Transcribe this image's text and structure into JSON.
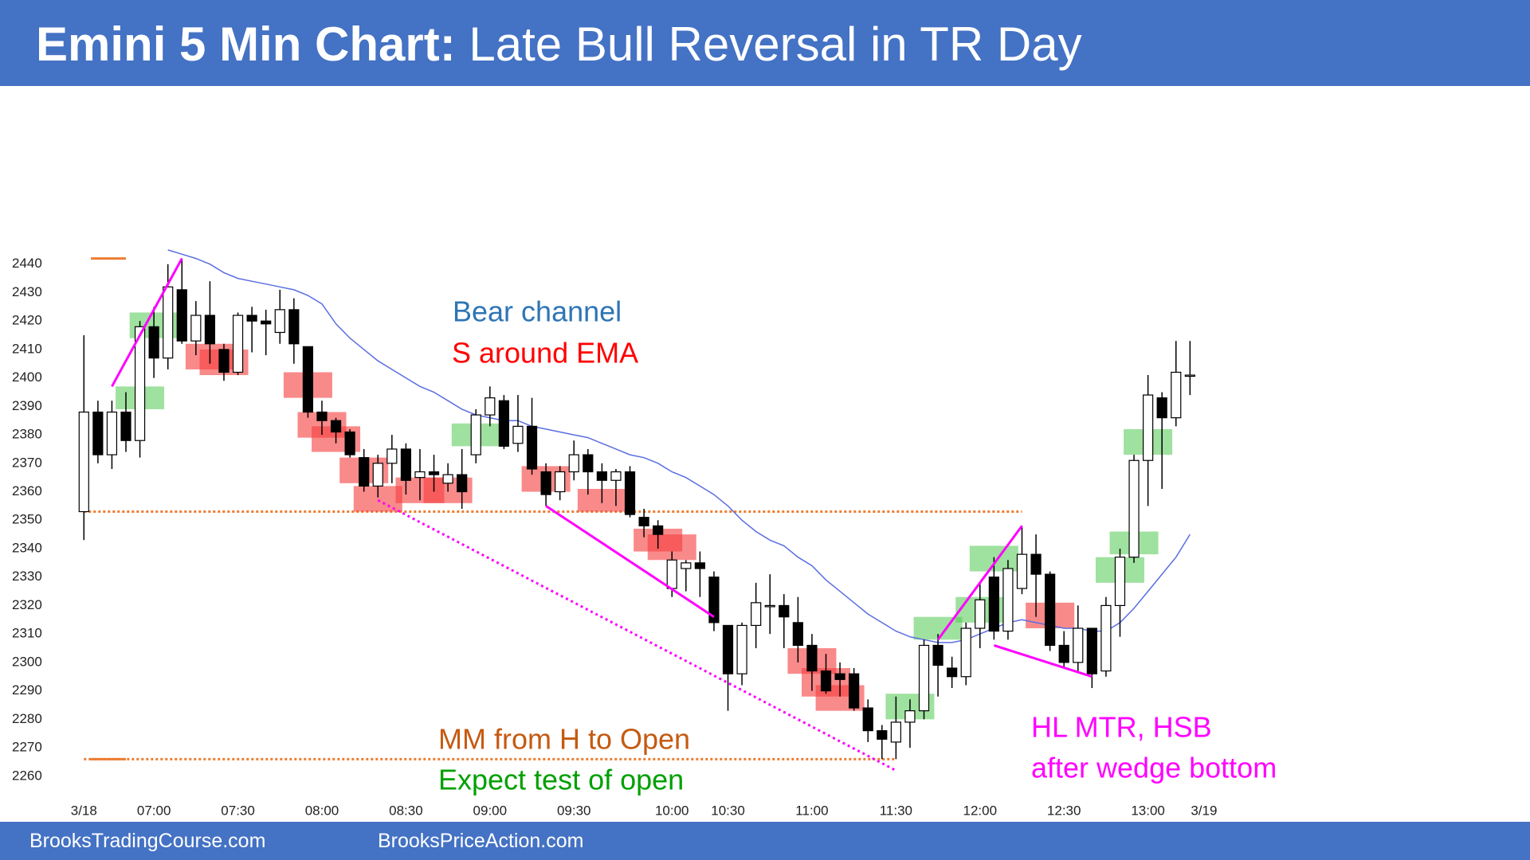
{
  "chart_data": {
    "type": "candlestick",
    "title": "Emini 5 Min Chart:",
    "subtitle": "Late Bull Reversal in TR Day",
    "categories": [
      "3/18",
      null,
      null,
      null,
      null,
      "07:00",
      null,
      null,
      null,
      null,
      null,
      "07:30",
      null,
      null,
      null,
      null,
      null,
      "08:00",
      null,
      null,
      null,
      null,
      null,
      "08:30",
      null,
      null,
      null,
      null,
      null,
      "09:00",
      null,
      null,
      null,
      null,
      null,
      "09:30",
      null,
      null,
      null,
      null,
      null,
      null,
      "10:00",
      null,
      null,
      null,
      "10:30",
      null,
      null,
      null,
      null,
      null,
      "11:00",
      null,
      null,
      null,
      null,
      null,
      "11:30",
      null,
      null,
      null,
      null,
      null,
      "12:00",
      null,
      null,
      null,
      null,
      null,
      "12:30",
      null,
      null,
      null,
      null,
      null,
      "13:00",
      null,
      null,
      null
    ],
    "next_day_label": "3/19",
    "open": [
      2353,
      2388,
      2373,
      2388,
      2378,
      2418,
      2407,
      2431,
      2413,
      2422,
      2410,
      2402,
      2422,
      2420,
      2416,
      2424,
      2411,
      2388,
      2385,
      2381,
      2372,
      2362,
      2370,
      2375,
      2365,
      2367,
      2363,
      2366,
      2373,
      2387,
      2392,
      2377,
      2383,
      2367,
      2360,
      2367,
      2373,
      2367,
      2364,
      2367,
      2351,
      2348,
      2326,
      2333,
      2335,
      2330,
      2313,
      2296,
      2313,
      2320,
      2320,
      2314,
      2306,
      2297,
      2296,
      2296,
      2284,
      2276,
      2272,
      2279,
      2283,
      2306,
      2298,
      2295,
      2312,
      2330,
      2311,
      2326,
      2338,
      2331,
      2306,
      2300,
      2312,
      2297,
      2320,
      2337,
      2371,
      2393,
      2386,
      2401
    ],
    "high": [
      2415,
      2392,
      2392,
      2395,
      2420,
      2425,
      2440,
      2442,
      2427,
      2434,
      2412,
      2423,
      2425,
      2424,
      2431,
      2428,
      2411,
      2392,
      2386,
      2382,
      2375,
      2373,
      2380,
      2377,
      2375,
      2373,
      2370,
      2375,
      2389,
      2397,
      2394,
      2394,
      2393,
      2370,
      2369,
      2378,
      2375,
      2370,
      2368,
      2369,
      2354,
      2350,
      2339,
      2336,
      2339,
      2332,
      2313,
      2314,
      2328,
      2331,
      2324,
      2323,
      2310,
      2303,
      2300,
      2298,
      2287,
      2278,
      2288,
      2287,
      2308,
      2310,
      2302,
      2314,
      2328,
      2337,
      2336,
      2348,
      2345,
      2332,
      2311,
      2320,
      2312,
      2323,
      2340,
      2373,
      2401,
      2395,
      2413,
      2413
    ],
    "low": [
      2343,
      2370,
      2368,
      2374,
      2372,
      2400,
      2403,
      2412,
      2408,
      2405,
      2399,
      2401,
      2409,
      2408,
      2412,
      2405,
      2386,
      2380,
      2377,
      2372,
      2360,
      2358,
      2363,
      2359,
      2357,
      2360,
      2360,
      2354,
      2370,
      2383,
      2375,
      2374,
      2366,
      2355,
      2357,
      2364,
      2359,
      2356,
      2355,
      2351,
      2344,
      2340,
      2323,
      2325,
      2323,
      2311,
      2283,
      2292,
      2305,
      2310,
      2305,
      2300,
      2290,
      2289,
      2288,
      2283,
      2272,
      2266,
      2266,
      2270,
      2280,
      2288,
      2291,
      2292,
      2305,
      2308,
      2308,
      2324,
      2316,
      2304,
      2298,
      2297,
      2291,
      2295,
      2309,
      2335,
      2355,
      2361,
      2383,
      2394
    ],
    "close": [
      2388,
      2373,
      2388,
      2378,
      2418,
      2407,
      2432,
      2413,
      2422,
      2412,
      2402,
      2422,
      2420,
      2419,
      2424,
      2412,
      2388,
      2385,
      2381,
      2373,
      2362,
      2370,
      2375,
      2364,
      2367,
      2366,
      2366,
      2360,
      2387,
      2393,
      2376,
      2383,
      2368,
      2359,
      2367,
      2373,
      2367,
      2364,
      2367,
      2352,
      2348,
      2345,
      2336,
      2335,
      2333,
      2314,
      2296,
      2313,
      2321,
      2320,
      2316,
      2306,
      2297,
      2290,
      2294,
      2284,
      2276,
      2273,
      2279,
      2283,
      2306,
      2299,
      2295,
      2312,
      2322,
      2311,
      2333,
      2338,
      2331,
      2306,
      2300,
      2312,
      2296,
      2320,
      2337,
      2371,
      2394,
      2386,
      2402,
      2401
    ],
    "up_color": "#ffffff",
    "down_color": "#000000",
    "ema": {
      "color": "#5a6ee0",
      "values": [
        null,
        null,
        null,
        null,
        null,
        null,
        2445,
        2443.5,
        2442,
        2440,
        2437,
        2435,
        2434,
        2433,
        2432,
        2431,
        2429,
        2426,
        2419,
        2414,
        2410,
        2406,
        2403,
        2400,
        2397,
        2395,
        2392,
        2389,
        2387,
        2386,
        2385,
        2385,
        2383,
        2382,
        2381,
        2380,
        2379,
        2377,
        2375,
        2373,
        2372,
        2370,
        2367,
        2365,
        2362,
        2359,
        2355,
        2350,
        2346,
        2343,
        2341,
        2337,
        2334,
        2329,
        2325,
        2321,
        2317,
        2314,
        2311,
        2309,
        2308,
        2307,
        2307,
        2308,
        2310,
        2312,
        2314,
        2315,
        2314,
        2313,
        2312,
        2312,
        2311,
        2311,
        2314,
        2319,
        2325,
        2331,
        2337,
        2345
      ]
    },
    "ylim": [
      2250,
      2450
    ],
    "yticks": [
      2260,
      2270,
      2280,
      2290,
      2300,
      2310,
      2320,
      2330,
      2340,
      2350,
      2360,
      2370,
      2380,
      2390,
      2400,
      2410,
      2420,
      2430,
      2440
    ],
    "grid": false,
    "boxes": [
      {
        "bar": 4,
        "low": 2389,
        "high": 2397,
        "color": "rgba(80,200,80,0.55)"
      },
      {
        "bar": 5,
        "low": 2414,
        "high": 2423,
        "color": "rgba(80,200,80,0.55)"
      },
      {
        "bar": 28,
        "low": 2376,
        "high": 2384,
        "color": "rgba(80,200,80,0.55)"
      },
      {
        "bar": 59,
        "low": 2280,
        "high": 2289,
        "color": "rgba(80,200,80,0.55)"
      },
      {
        "bar": 61,
        "low": 2308,
        "high": 2316,
        "color": "rgba(80,200,80,0.55)"
      },
      {
        "bar": 64,
        "low": 2314,
        "high": 2323,
        "color": "rgba(80,200,80,0.55)"
      },
      {
        "bar": 65,
        "low": 2332,
        "high": 2341,
        "color": "rgba(80,200,80,0.55)"
      },
      {
        "bar": 74,
        "low": 2328,
        "high": 2337,
        "color": "rgba(80,200,80,0.55)"
      },
      {
        "bar": 75,
        "low": 2338,
        "high": 2346,
        "color": "rgba(80,200,80,0.55)"
      },
      {
        "bar": 76,
        "low": 2373,
        "high": 2382,
        "color": "rgba(80,200,80,0.55)"
      },
      {
        "bar": 9,
        "low": 2403,
        "high": 2412,
        "color": "rgba(245,60,60,0.6)"
      },
      {
        "bar": 10,
        "low": 2401,
        "high": 2410,
        "color": "rgba(245,60,60,0.6)"
      },
      {
        "bar": 16,
        "low": 2393,
        "high": 2402,
        "color": "rgba(245,60,60,0.6)"
      },
      {
        "bar": 17,
        "low": 2379,
        "high": 2388,
        "color": "rgba(245,60,60,0.6)"
      },
      {
        "bar": 18,
        "low": 2374,
        "high": 2383,
        "color": "rgba(245,60,60,0.6)"
      },
      {
        "bar": 20,
        "low": 2363,
        "high": 2372,
        "color": "rgba(245,60,60,0.6)"
      },
      {
        "bar": 21,
        "low": 2353,
        "high": 2362,
        "color": "rgba(245,60,60,0.6)"
      },
      {
        "bar": 24,
        "low": 2356,
        "high": 2365,
        "color": "rgba(245,60,60,0.6)"
      },
      {
        "bar": 26,
        "low": 2356,
        "high": 2365,
        "color": "rgba(245,60,60,0.6)"
      },
      {
        "bar": 33,
        "low": 2360,
        "high": 2369,
        "color": "rgba(245,60,60,0.6)"
      },
      {
        "bar": 37,
        "low": 2353,
        "high": 2361,
        "color": "rgba(245,60,60,0.6)"
      },
      {
        "bar": 41,
        "low": 2339,
        "high": 2347,
        "color": "rgba(245,60,60,0.6)"
      },
      {
        "bar": 42,
        "low": 2336,
        "high": 2345,
        "color": "rgba(245,60,60,0.6)"
      },
      {
        "bar": 52,
        "low": 2296,
        "high": 2305,
        "color": "rgba(245,60,60,0.6)"
      },
      {
        "bar": 53,
        "low": 2288,
        "high": 2298,
        "color": "rgba(245,60,60,0.6)"
      },
      {
        "bar": 54,
        "low": 2283,
        "high": 2292,
        "color": "rgba(245,60,60,0.6)"
      },
      {
        "bar": 69,
        "low": 2312,
        "high": 2321,
        "color": "rgba(245,60,60,0.6)"
      }
    ],
    "trend_lines": [
      {
        "x": [
          2,
          7
        ],
        "y": [
          2397,
          2442
        ],
        "color": "#ff00ff",
        "style": "solid"
      },
      {
        "x": [
          33,
          45
        ],
        "y": [
          2355,
          2316
        ],
        "color": "#ff00ff",
        "style": "solid"
      },
      {
        "x": [
          61,
          67
        ],
        "y": [
          2308,
          2348
        ],
        "color": "#ff00ff",
        "style": "solid"
      },
      {
        "x": [
          65,
          72
        ],
        "y": [
          2306,
          2295
        ],
        "color": "#ff00ff",
        "style": "solid"
      },
      {
        "x": [
          21,
          58
        ],
        "y": [
          2357,
          2262
        ],
        "color": "#ff00ff",
        "style": "dotted"
      }
    ],
    "levels": [
      {
        "value": 2353,
        "from": 0,
        "to": 67,
        "color": "#ed7d31",
        "style": "dotted"
      },
      {
        "value": 2266,
        "from": 0,
        "to": 58,
        "color": "#ed7d31",
        "style": "dotted"
      },
      {
        "value": 2442,
        "from": 0.5,
        "to": 3,
        "color": "#ed7d31",
        "style": "solid"
      },
      {
        "value": 2266,
        "from": 0.5,
        "to": 3,
        "color": "#ed7d31",
        "style": "solid"
      }
    ],
    "annotations": [
      {
        "text": "Bear channel",
        "color": "#2e75b6"
      },
      {
        "text": "S around EMA",
        "color": "#ff0000"
      },
      {
        "text": "MM from H to Open",
        "color": "#c55a11"
      },
      {
        "text": "Expect test of open",
        "color": "#00a000"
      },
      {
        "text": "HL MTR, HSB",
        "color": "#ff00ff"
      },
      {
        "text": "after wedge bottom",
        "color": "#ff00ff"
      }
    ]
  },
  "footer": [
    "BrooksTradingCourse.com",
    "BrooksPriceAction.com"
  ]
}
